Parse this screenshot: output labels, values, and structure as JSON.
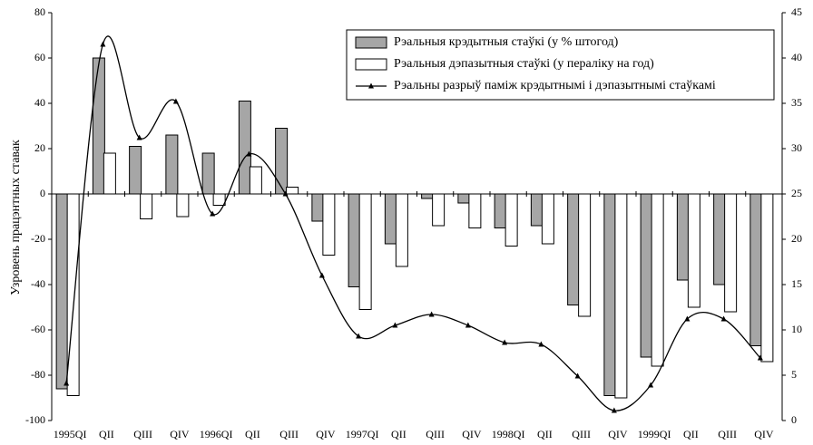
{
  "chart_data": {
    "type": "bar",
    "ylabel": "Узровень працэнтных ставак",
    "categories": [
      "1995QI",
      "QII",
      "QIII",
      "QIV",
      "1996QI",
      "QII",
      "QIII",
      "QIV",
      "1997QI",
      "QII",
      "QIII",
      "QIV",
      "1998QI",
      "QII",
      "QIII",
      "QIV",
      "1999QI",
      "QII",
      "QIII",
      "QIV"
    ],
    "series": [
      {
        "name": "Рэальныя крэдытныя стаўкі (у % штогод)",
        "type": "bar",
        "color": "#a6a6a6",
        "values": [
          -86,
          60,
          21,
          26,
          18,
          41,
          29,
          -12,
          -41,
          -22,
          -2,
          -4,
          -15,
          -14,
          -49,
          -89,
          -72,
          -38,
          -40,
          -67
        ]
      },
      {
        "name": "Рэальныя дэпазытныя стаўкі (у пераліку на год)",
        "type": "bar",
        "color": "#ffffff",
        "values": [
          -89,
          18,
          -11,
          -10,
          -5,
          12,
          3,
          -27,
          -51,
          -32,
          -14,
          -15,
          -23,
          -22,
          -54,
          -90,
          -76,
          -50,
          -52,
          -74
        ]
      },
      {
        "name": "Рэальны разрыў паміж крэдытнымі і дэпазытнымі стаўкамі",
        "type": "line",
        "color": "#000000",
        "axis": "y2",
        "values": [
          4.1,
          41.5,
          31.2,
          35.2,
          22.8,
          29.4,
          25,
          16,
          9.3,
          10.5,
          11.7,
          10.5,
          8.6,
          8.4,
          4.9,
          1.1,
          3.9,
          11.2,
          11.2,
          6.9
        ]
      }
    ],
    "ylim": [
      -100,
      80
    ],
    "yticks": [
      -100,
      -80,
      -60,
      -40,
      -20,
      0,
      20,
      40,
      60,
      80
    ],
    "y2lim": [
      0,
      45
    ],
    "y2ticks": [
      0,
      5,
      10,
      15,
      20,
      25,
      30,
      35,
      40,
      45
    ],
    "grid": false,
    "legend": "upper right"
  }
}
